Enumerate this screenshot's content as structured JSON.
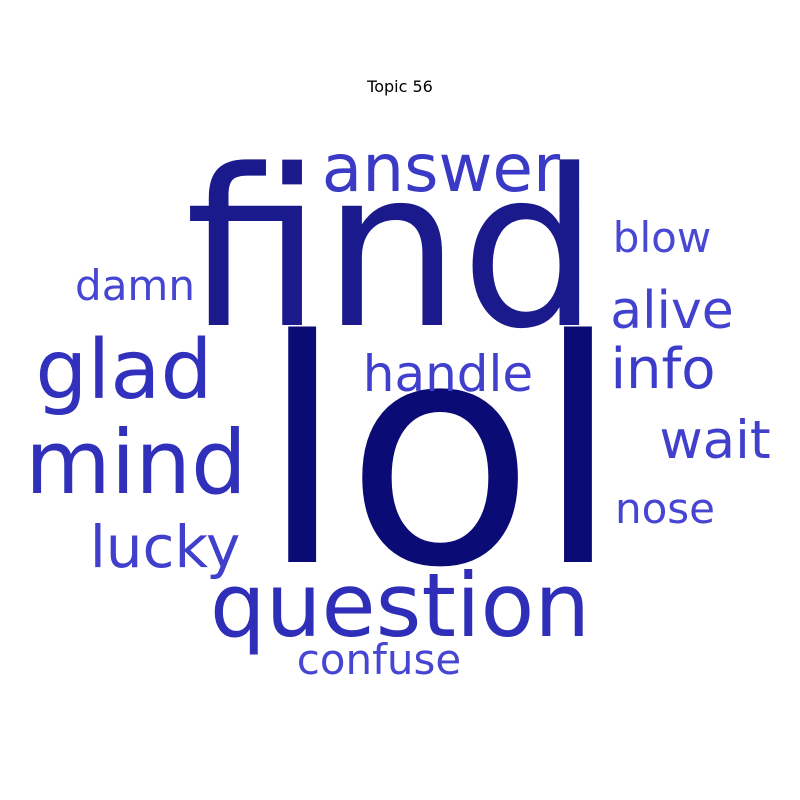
{
  "title": "Topic 56",
  "words": [
    {
      "id": "lol",
      "text": "lol",
      "color": "#0b0b75"
    },
    {
      "id": "find",
      "text": "find",
      "color": "#1a1a8c"
    },
    {
      "id": "question",
      "text": "question",
      "color": "#2e2eb8"
    },
    {
      "id": "mind",
      "text": "mind",
      "color": "#3030bb"
    },
    {
      "id": "glad",
      "text": "glad",
      "color": "#3131bd"
    },
    {
      "id": "answer",
      "text": "answer",
      "color": "#3a3ac6"
    },
    {
      "id": "info",
      "text": "info",
      "color": "#3c3cca"
    },
    {
      "id": "lucky",
      "text": "lucky",
      "color": "#4040cc"
    },
    {
      "id": "handle",
      "text": "handle",
      "color": "#4040cc"
    },
    {
      "id": "wait",
      "text": "wait",
      "color": "#4040cc"
    },
    {
      "id": "alive",
      "text": "alive",
      "color": "#4242cf"
    },
    {
      "id": "confuse",
      "text": "confuse",
      "color": "#4646d2"
    },
    {
      "id": "damn",
      "text": "damn",
      "color": "#4646d2"
    },
    {
      "id": "nose",
      "text": "nose",
      "color": "#4646d2"
    },
    {
      "id": "blow",
      "text": "blow",
      "color": "#4848d4"
    }
  ]
}
